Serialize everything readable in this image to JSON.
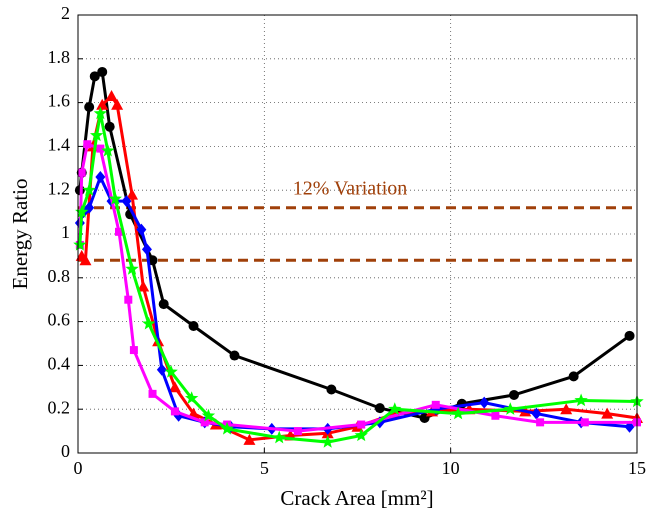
{
  "chart_data": {
    "type": "line",
    "xlabel": "Crack Area [mm²]",
    "ylabel": "Energy Ratio",
    "annotation": "12% Variation",
    "xlim": [
      0,
      15
    ],
    "xticks": [
      0,
      5,
      10,
      15
    ],
    "ylim": [
      0,
      2
    ],
    "yticks": [
      0,
      0.2,
      0.4,
      0.6,
      0.8,
      1,
      1.2,
      1.4,
      1.6,
      1.8,
      2
    ],
    "grid": true,
    "hlines": {
      "values": [
        1.12,
        0.88
      ],
      "color": "#a0400a"
    },
    "series": [
      {
        "color": "#000000",
        "marker": "circle",
        "x": [
          0.05,
          0.1,
          0.3,
          0.45,
          0.65,
          0.85,
          1.4,
          2.0,
          2.3,
          3.1,
          4.2,
          6.8,
          8.1,
          9.3,
          10.3,
          11.7,
          13.3,
          14.8
        ],
        "values": [
          1.2,
          1.28,
          1.58,
          1.72,
          1.74,
          1.49,
          1.09,
          0.88,
          0.68,
          0.58,
          0.445,
          0.29,
          0.205,
          0.16,
          0.225,
          0.265,
          0.35,
          0.535
        ]
      },
      {
        "color": "#ff0000",
        "marker": "triangle",
        "x": [
          0.1,
          0.2,
          0.4,
          0.65,
          0.9,
          1.05,
          1.45,
          1.75,
          2.15,
          2.6,
          3.1,
          3.7,
          4.6,
          5.7,
          6.7,
          7.5,
          8.5,
          9.5,
          10.5,
          12,
          13.1,
          14.2,
          15
        ],
        "values": [
          0.9,
          0.88,
          1.4,
          1.59,
          1.63,
          1.59,
          1.18,
          0.76,
          0.51,
          0.3,
          0.18,
          0.13,
          0.06,
          0.08,
          0.09,
          0.12,
          0.18,
          0.19,
          0.2,
          0.19,
          0.2,
          0.18,
          0.16
        ]
      },
      {
        "color": "#0000ff",
        "marker": "diamond",
        "x": [
          0.05,
          0.15,
          0.3,
          0.6,
          0.9,
          1.3,
          1.7,
          1.85,
          2.25,
          2.7,
          3.4,
          4.1,
          5.2,
          6.7,
          8.1,
          9.6,
          10.9,
          12.3,
          13.5,
          14.8
        ],
        "values": [
          1.05,
          1.1,
          1.12,
          1.26,
          1.15,
          1.15,
          1.02,
          0.93,
          0.38,
          0.17,
          0.14,
          0.12,
          0.11,
          0.11,
          0.14,
          0.2,
          0.23,
          0.18,
          0.14,
          0.12
        ]
      },
      {
        "color": "#ff00ff",
        "marker": "square",
        "x": [
          0.05,
          0.1,
          0.25,
          0.6,
          1.1,
          1.35,
          1.5,
          2.0,
          2.6,
          3.4,
          4.0,
          5.9,
          7.6,
          9.6,
          11.2,
          12.4,
          13.6,
          15
        ],
        "values": [
          0.95,
          1.28,
          1.41,
          1.39,
          1.01,
          0.7,
          0.47,
          0.27,
          0.19,
          0.14,
          0.13,
          0.1,
          0.13,
          0.22,
          0.17,
          0.14,
          0.14,
          0.14
        ]
      },
      {
        "color": "#00ff00",
        "marker": "star",
        "x": [
          0.05,
          0.1,
          0.3,
          0.5,
          0.6,
          0.8,
          1.0,
          1.45,
          1.9,
          2.5,
          3.05,
          3.5,
          4.0,
          5.4,
          6.7,
          7.6,
          8.5,
          10.2,
          11.6,
          13.5,
          15
        ],
        "values": [
          0.95,
          1.1,
          1.2,
          1.45,
          1.55,
          1.38,
          1.16,
          0.84,
          0.59,
          0.37,
          0.25,
          0.17,
          0.11,
          0.07,
          0.05,
          0.08,
          0.2,
          0.18,
          0.2,
          0.24,
          0.235
        ]
      }
    ]
  }
}
